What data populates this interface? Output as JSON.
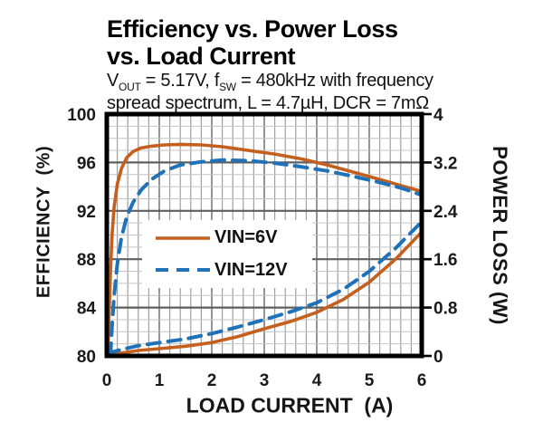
{
  "header": {
    "title_line1": "Efficiency vs. Power Loss",
    "title_line2": "vs. Load Current",
    "subtitle": {
      "v_base": "V",
      "v_sub": "OUT",
      "mid": " = 5.17V, f",
      "f_sub": "SW",
      "line1_rest": " = 480kHz with frequency",
      "line2": "spread spectrum, L = 4.7µH, DCR = 7mΩ"
    }
  },
  "axes": {
    "left_label": "EFFICIENCY  (%)",
    "right_label": "POWER LOSS (W)",
    "x_label": "LOAD CURRENT  (A)"
  },
  "legend": {
    "items": [
      {
        "label": "VIN=6V",
        "color": "#c45f1e",
        "style": "solid"
      },
      {
        "label": "VIN=12V",
        "color": "#1f72b8",
        "style": "dashed"
      }
    ]
  },
  "colors": {
    "orange": "#c45f1e",
    "blue": "#1f72b8",
    "border": "#000000",
    "grid_minor_v": "#9e9e9e",
    "grid_major_v": "#7a7a7a",
    "grid_minor_h": "#c4c4c4",
    "grid_major_h": "#5f5f5f",
    "tick_text": "#1a1a1a",
    "x_tick_3_tint": "#2f4f6f"
  },
  "chart_data": {
    "type": "line",
    "title": "Efficiency vs. Power Loss vs. Load Current",
    "subtitle": "VOUT = 5.17V, fSW = 480kHz with frequency spread spectrum, L = 4.7µH, DCR = 7mΩ",
    "grid": "both-major-and-minor",
    "legend_position": "inside-center-left",
    "x_axis": {
      "label": "LOAD CURRENT (A)",
      "min": 0,
      "max": 6,
      "ticks": [
        0,
        1,
        2,
        3,
        4,
        5,
        6
      ],
      "minor_step": 0.2
    },
    "y_left": {
      "label": "EFFICIENCY (%)",
      "min": 80,
      "max": 100,
      "ticks": [
        100,
        96,
        92,
        88,
        84,
        80
      ],
      "minor_step": 1
    },
    "y_right": {
      "label": "POWER LOSS (W)",
      "min": 0,
      "max": 4,
      "ticks": [
        4,
        3.2,
        2.4,
        1.6,
        0.8,
        0
      ],
      "minor_step": 0.2
    },
    "series": [
      {
        "name": "Efficiency VIN=6V",
        "axis": "left",
        "color": "#c45f1e",
        "style": "solid",
        "x": [
          0.02,
          0.04,
          0.07,
          0.1,
          0.14,
          0.2,
          0.28,
          0.38,
          0.5,
          0.65,
          0.85,
          1.1,
          1.4,
          1.8,
          2.2,
          2.7,
          3.2,
          3.7,
          4.2,
          4.7,
          5.2,
          5.6,
          6.0
        ],
        "y": [
          80.0,
          83.0,
          87.0,
          90.0,
          92.3,
          94.2,
          95.5,
          96.4,
          96.9,
          97.2,
          97.35,
          97.45,
          97.5,
          97.45,
          97.3,
          97.0,
          96.7,
          96.3,
          95.8,
          95.2,
          94.6,
          94.1,
          93.6
        ]
      },
      {
        "name": "Efficiency VIN=12V",
        "axis": "left",
        "color": "#1f72b8",
        "style": "dashed",
        "x": [
          0.07,
          0.1,
          0.14,
          0.2,
          0.28,
          0.38,
          0.5,
          0.65,
          0.85,
          1.1,
          1.4,
          1.8,
          2.2,
          2.7,
          3.2,
          3.7,
          4.2,
          4.7,
          5.2,
          5.6,
          6.0
        ],
        "y": [
          80.0,
          82.5,
          85.0,
          87.6,
          89.8,
          91.5,
          92.7,
          93.7,
          94.6,
          95.3,
          95.8,
          96.05,
          96.2,
          96.15,
          95.95,
          95.65,
          95.3,
          94.85,
          94.35,
          93.9,
          93.3
        ]
      },
      {
        "name": "Power Loss VIN=6V",
        "axis": "right",
        "color": "#c45f1e",
        "style": "solid",
        "x": [
          0.0,
          0.3,
          0.6,
          1.0,
          1.5,
          2.0,
          2.5,
          3.0,
          3.5,
          4.0,
          4.5,
          5.0,
          5.5,
          6.0
        ],
        "y": [
          0.02,
          0.05,
          0.09,
          0.12,
          0.16,
          0.22,
          0.32,
          0.45,
          0.57,
          0.72,
          0.93,
          1.22,
          1.6,
          2.05
        ]
      },
      {
        "name": "Power Loss VIN=12V",
        "axis": "right",
        "color": "#1f72b8",
        "style": "dashed",
        "x": [
          0.0,
          0.3,
          0.6,
          1.0,
          1.5,
          2.0,
          2.5,
          3.0,
          3.5,
          4.0,
          4.5,
          5.0,
          5.5,
          6.0
        ],
        "y": [
          0.04,
          0.11,
          0.17,
          0.22,
          0.28,
          0.37,
          0.48,
          0.6,
          0.73,
          0.88,
          1.1,
          1.4,
          1.78,
          2.22
        ]
      }
    ]
  }
}
